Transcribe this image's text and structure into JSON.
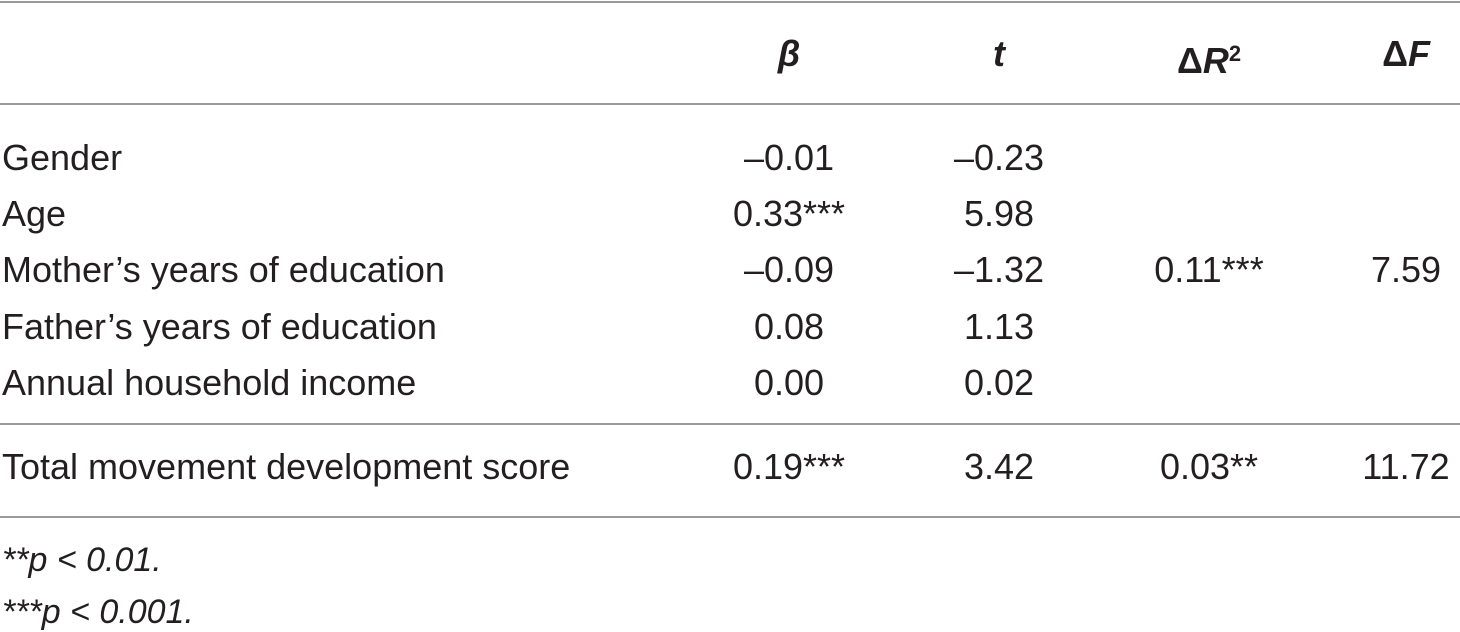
{
  "table": {
    "headers": {
      "beta": "β",
      "t": "t",
      "dr2_delta": "Δ",
      "dr2_var": "R",
      "dr2_sup": "2",
      "df_delta": "Δ",
      "df_var": "F"
    },
    "rows": [
      {
        "label": "Gender",
        "beta": "–0.01",
        "t": "–0.23"
      },
      {
        "label": "Age",
        "beta": "0.33***",
        "t": "5.98"
      },
      {
        "label": "Mother’s years of education",
        "beta": "–0.09",
        "t": "–1.32",
        "dr2": "0.11***",
        "df": "7.59"
      },
      {
        "label": "Father’s years of education",
        "beta": "0.08",
        "t": "1.13"
      },
      {
        "label": "Annual household income",
        "beta": "0.00",
        "t": "0.02"
      },
      {
        "label": "Total movement development score",
        "beta": "0.19***",
        "t": "3.42",
        "dr2": "0.03**",
        "df": "11.72"
      }
    ],
    "notes": [
      "**p < 0.01.",
      "***p < 0.001."
    ]
  }
}
